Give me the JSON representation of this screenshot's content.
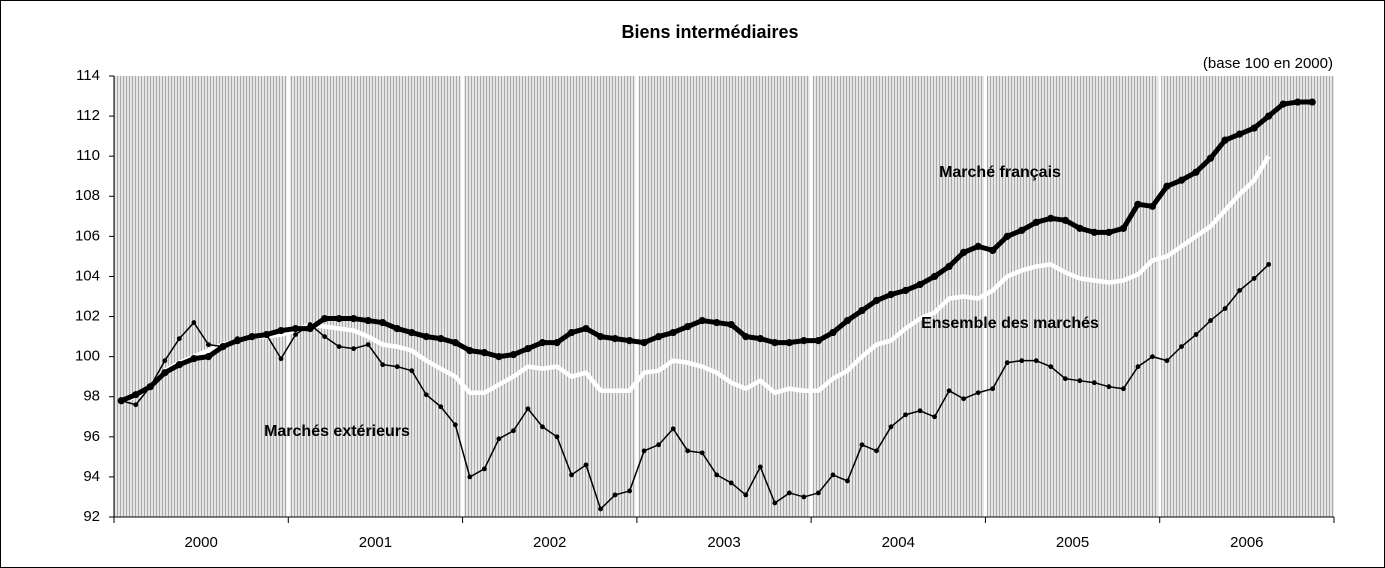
{
  "chart_data": {
    "type": "line",
    "title": "Biens intermédiaires",
    "subtitle": "(base 100 en 2000)",
    "categories": [
      null,
      null,
      null,
      null,
      null,
      null,
      "2000",
      null,
      null,
      null,
      null,
      null,
      null,
      null,
      null,
      null,
      null,
      null,
      "2001",
      null,
      null,
      null,
      null,
      null,
      null,
      null,
      null,
      null,
      null,
      null,
      "2002",
      null,
      null,
      null,
      null,
      null,
      null,
      null,
      null,
      null,
      null,
      null,
      "2003",
      null,
      null,
      null,
      null,
      null,
      null,
      null,
      null,
      null,
      null,
      null,
      "2004",
      null,
      null,
      null,
      null,
      null,
      null,
      null,
      null,
      null,
      null,
      null,
      "2005",
      null,
      null,
      null,
      null,
      null,
      null,
      null,
      null,
      null,
      null,
      null,
      "2006",
      null,
      null,
      null,
      null,
      null
    ],
    "series": [
      {
        "name": "Ensemble des marchés",
        "color": "#ffffff",
        "values": [
          97.8,
          98.0,
          98.5,
          99.3,
          99.7,
          100.0,
          100.3,
          100.6,
          100.8,
          101.0,
          101.0,
          101.1,
          101.3,
          101.6,
          101.5,
          101.4,
          101.3,
          101.0,
          100.6,
          100.5,
          100.3,
          99.8,
          99.4,
          99.0,
          98.2,
          98.2,
          98.6,
          99.0,
          99.5,
          99.4,
          99.5,
          99.0,
          99.2,
          98.3,
          98.3,
          98.3,
          99.2,
          99.3,
          99.8,
          99.7,
          99.5,
          99.2,
          98.7,
          98.4,
          98.8,
          98.2,
          98.4,
          98.3,
          98.3,
          98.9,
          99.3,
          100.0,
          100.6,
          100.8,
          101.4,
          101.9,
          102.2,
          102.9,
          103.0,
          102.9,
          103.3,
          104.0,
          104.3,
          104.5,
          104.6,
          104.2,
          103.9,
          103.8,
          103.7,
          103.8,
          104.1,
          104.8,
          105.0,
          105.5,
          106.0,
          106.5,
          107.3,
          108.1,
          108.8,
          110.0,
          null,
          null,
          null,
          null
        ]
      },
      {
        "name": "Marché français",
        "color": "#000000",
        "values": [
          97.8,
          98.1,
          98.5,
          99.2,
          99.6,
          99.9,
          100.0,
          100.5,
          100.8,
          101.0,
          101.1,
          101.3,
          101.4,
          101.4,
          101.9,
          101.9,
          101.9,
          101.8,
          101.7,
          101.4,
          101.2,
          101.0,
          100.9,
          100.7,
          100.3,
          100.2,
          100.0,
          100.1,
          100.4,
          100.7,
          100.7,
          101.2,
          101.4,
          101.0,
          100.9,
          100.8,
          100.7,
          101.0,
          101.2,
          101.5,
          101.8,
          101.7,
          101.6,
          101.0,
          100.9,
          100.7,
          100.7,
          100.8,
          100.8,
          101.2,
          101.8,
          102.3,
          102.8,
          103.1,
          103.3,
          103.6,
          104.0,
          104.5,
          105.2,
          105.5,
          105.3,
          106.0,
          106.3,
          106.7,
          106.9,
          106.8,
          106.4,
          106.2,
          106.2,
          106.4,
          107.6,
          107.5,
          108.5,
          108.8,
          109.2,
          109.9,
          110.8,
          111.1,
          111.4,
          112.0,
          112.6,
          112.7,
          112.7,
          null
        ]
      },
      {
        "name": "Marchés extérieurs",
        "color": "#000000",
        "values": [
          97.8,
          97.6,
          98.5,
          99.8,
          100.9,
          101.7,
          100.6,
          100.5,
          100.9,
          101.0,
          101.1,
          99.9,
          101.1,
          101.6,
          101.0,
          100.5,
          100.4,
          100.6,
          99.6,
          99.5,
          99.3,
          98.1,
          97.5,
          96.6,
          94.0,
          94.4,
          95.9,
          96.3,
          97.4,
          96.5,
          96.0,
          94.1,
          94.6,
          92.4,
          93.1,
          93.3,
          95.3,
          95.6,
          96.4,
          95.3,
          95.2,
          94.1,
          93.7,
          93.1,
          94.5,
          92.7,
          93.2,
          93.0,
          93.2,
          94.1,
          93.8,
          95.6,
          95.3,
          96.5,
          97.1,
          97.3,
          97.0,
          98.3,
          97.9,
          98.2,
          98.4,
          99.7,
          99.8,
          99.8,
          99.5,
          98.9,
          98.8,
          98.7,
          98.5,
          98.4,
          99.5,
          100.0,
          99.8,
          100.5,
          101.1,
          101.8,
          102.4,
          103.3,
          103.9,
          104.6,
          null,
          null,
          null,
          null
        ]
      }
    ],
    "ylim": [
      92,
      114
    ],
    "yticks": [
      92,
      94,
      96,
      98,
      100,
      102,
      104,
      106,
      108,
      110,
      112,
      114
    ],
    "grid": false
  }
}
